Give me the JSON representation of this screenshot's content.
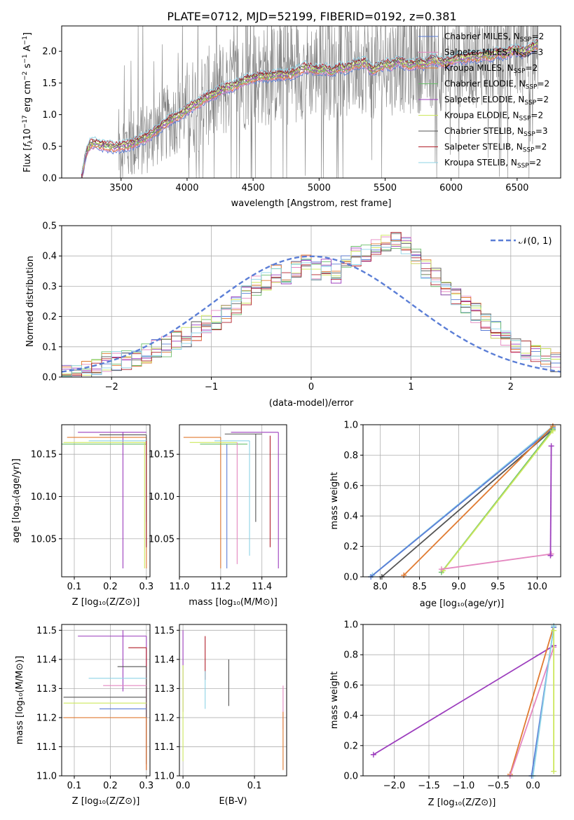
{
  "colors": {
    "c1": "#5b7ed6",
    "c2": "#e487c0",
    "c3": "#e07a30",
    "c4": "#6bbf6b",
    "c5": "#9c3dbd",
    "c6": "#cde85d",
    "c7": "#545454",
    "c8": "#b11f2a",
    "c9": "#8ed3e6"
  },
  "chart_data": [
    {
      "id": "spectrum",
      "type": "line",
      "title": "PLATE=0712, MJD=52199, FIBERID=0192, z=0.381",
      "xlabel": "wavelength [Angstrom, rest frame]",
      "ylabel": "Flux [f_λ 10^{-17} erg cm^{-2} s^{-1} A^{-1}]",
      "ylabel_parts": {
        "a": "Flux [",
        "b": "f",
        "c": "λ",
        "d": "10",
        "e": "−17",
        "f": " erg cm",
        "g": "−2",
        "h": " s",
        "i": "−1",
        "j": " A",
        "k": "−1",
        "l": "]"
      },
      "xlim": [
        3050,
        6830
      ],
      "ylim": [
        0,
        2.4
      ],
      "xticks": [
        3500,
        4000,
        4500,
        5000,
        5500,
        6000,
        6500
      ],
      "yticks": [
        "0.0",
        "0.5",
        "1.0",
        "1.5",
        "2.0"
      ],
      "data_color": "#808080",
      "model_x": [
        3200,
        3230,
        3260,
        3300,
        3350,
        3400,
        3450,
        3500,
        3550,
        3600,
        3650,
        3700,
        3750,
        3800,
        3850,
        3900,
        3950,
        4000,
        4050,
        4100,
        4150,
        4200,
        4250,
        4300,
        4350,
        4400,
        4450,
        4500,
        4550,
        4600,
        4650,
        4700,
        4750,
        4800,
        4850,
        4900,
        4950,
        5000,
        5050,
        5100,
        5150,
        5200,
        5250,
        5300,
        5350,
        5400,
        5450,
        5500,
        5550,
        5600,
        5650,
        5700,
        5750,
        5800,
        5850,
        5900,
        5950,
        6000,
        6050,
        6100,
        6150,
        6200,
        6250,
        6300,
        6350,
        6400,
        6450,
        6500,
        6550,
        6600,
        6650
      ],
      "model_y": [
        0.0,
        0.35,
        0.52,
        0.55,
        0.52,
        0.5,
        0.48,
        0.5,
        0.52,
        0.55,
        0.6,
        0.65,
        0.72,
        0.8,
        0.88,
        0.95,
        1.0,
        1.08,
        1.15,
        1.2,
        1.28,
        1.32,
        1.38,
        1.43,
        1.45,
        1.5,
        1.55,
        1.58,
        1.6,
        1.6,
        1.62,
        1.63,
        1.62,
        1.65,
        1.7,
        1.75,
        1.72,
        1.7,
        1.72,
        1.68,
        1.75,
        1.72,
        1.78,
        1.8,
        1.82,
        1.7,
        1.75,
        1.8,
        1.78,
        1.85,
        1.8,
        1.78,
        1.82,
        1.8,
        1.88,
        1.85,
        1.82,
        1.85,
        1.9,
        1.88,
        1.92,
        1.9,
        1.95,
        1.92,
        1.98,
        1.95,
        2.0,
        2.02,
        1.98,
        2.05,
        2.1
      ],
      "legend": [
        {
          "label": "Chabrier MILES, N",
          "sub": "SSP",
          "suffix": "=2",
          "color": "#5b7ed6"
        },
        {
          "label": "Salpeter MILES, N",
          "sub": "SSP",
          "suffix": "=3",
          "color": "#e487c0"
        },
        {
          "label": "Kroupa MILES, N",
          "sub": "SSP",
          "suffix": "=2",
          "color": "#e07a30"
        },
        {
          "label": "Chabrier ELODIE, N",
          "sub": "SSP",
          "suffix": "=2",
          "color": "#6bbf6b"
        },
        {
          "label": "Salpeter ELODIE, N",
          "sub": "SSP",
          "suffix": "=2",
          "color": "#9c3dbd"
        },
        {
          "label": "Kroupa ELODIE, N",
          "sub": "SSP",
          "suffix": "=2",
          "color": "#cde85d"
        },
        {
          "label": "Chabrier STELIB, N",
          "sub": "SSP",
          "suffix": "=3",
          "color": "#545454"
        },
        {
          "label": "Salpeter STELIB, N",
          "sub": "SSP",
          "suffix": "=2",
          "color": "#b11f2a"
        },
        {
          "label": "Kroupa STELIB, N",
          "sub": "SSP",
          "suffix": "=2",
          "color": "#8ed3e6"
        }
      ]
    },
    {
      "id": "residuals",
      "type": "line",
      "xlabel": "(data-model)/error",
      "ylabel": "Normed distribution",
      "xlim": [
        -2.5,
        2.5
      ],
      "ylim": [
        0,
        0.5
      ],
      "xticks": [
        "−2",
        "−1",
        "0",
        "1",
        "2"
      ],
      "yticks": [
        "0.0",
        "0.1",
        "0.2",
        "0.3",
        "0.4",
        "0.5"
      ],
      "grid": true,
      "legend": "top-right",
      "gaussian_label": "𝒩(0, 1)",
      "hist_bins": 50,
      "hist_values": [
        0.02,
        0.02,
        0.03,
        0.04,
        0.05,
        0.05,
        0.06,
        0.07,
        0.08,
        0.09,
        0.1,
        0.12,
        0.13,
        0.15,
        0.17,
        0.19,
        0.21,
        0.24,
        0.27,
        0.3,
        0.32,
        0.34,
        0.33,
        0.36,
        0.38,
        0.35,
        0.37,
        0.34,
        0.38,
        0.4,
        0.41,
        0.43,
        0.44,
        0.45,
        0.43,
        0.4,
        0.36,
        0.33,
        0.3,
        0.27,
        0.24,
        0.21,
        0.18,
        0.15,
        0.13,
        0.11,
        0.09,
        0.07,
        0.06,
        0.05
      ]
    },
    {
      "id": "Z_age",
      "type": "line",
      "xlabel": "Z [log₁₀(Z/Z⊙)]",
      "ylabel": "age  [log₁₀(age/yr)]",
      "xlim": [
        0.065,
        0.31
      ],
      "ylim": [
        10.005,
        10.185
      ],
      "xticks": [
        "0.1",
        "0.2",
        "0.3"
      ],
      "yticks": [
        "10.05",
        "10.10",
        "10.15"
      ],
      "grid": true
    },
    {
      "id": "mass_age",
      "type": "line",
      "xlabel": "mass [log₁₀(M/M⊙)]",
      "xlim": [
        11.0,
        11.52
      ],
      "ylim": [
        10.005,
        10.185
      ],
      "xticks": [
        "11.0",
        "11.2",
        "11.4"
      ],
      "yticks": [
        "10.05",
        "10.10",
        "10.15"
      ],
      "grid": true
    },
    {
      "id": "age_weight",
      "type": "line",
      "xlabel": "age  [log₁₀(age/yr)]",
      "ylabel": "mass weight",
      "xlim": [
        7.78,
        10.3
      ],
      "ylim": [
        0,
        1.0
      ],
      "xticks": [
        "8.0",
        "8.5",
        "9.0",
        "9.5",
        "10.0"
      ],
      "yticks": [
        "0.0",
        "0.2",
        "0.4",
        "0.6",
        "0.8",
        "1.0"
      ],
      "grid": true,
      "series": [
        {
          "color": "#8ed3e6",
          "x": [
            7.9,
            10.2
          ],
          "y": [
            0.01,
            0.99
          ]
        },
        {
          "color": "#5b7ed6",
          "x": [
            7.88,
            10.2
          ],
          "y": [
            0.0,
            0.98
          ]
        },
        {
          "color": "#545454",
          "x": [
            8.02,
            10.2
          ],
          "y": [
            0.0,
            0.97
          ]
        },
        {
          "color": "#e07a30",
          "x": [
            8.3,
            10.2
          ],
          "y": [
            0.01,
            0.99
          ]
        },
        {
          "color": "#6bbf6b",
          "x": [
            8.78,
            10.2
          ],
          "y": [
            0.03,
            0.97
          ]
        },
        {
          "color": "#cde85d",
          "x": [
            8.8,
            10.2
          ],
          "y": [
            0.04,
            0.96
          ]
        },
        {
          "color": "#e487c0",
          "x": [
            8.78,
            10.18
          ],
          "y": [
            0.05,
            0.15
          ]
        },
        {
          "color": "#9c3dbd",
          "x": [
            10.17,
            10.18
          ],
          "y": [
            0.14,
            0.86
          ]
        }
      ]
    },
    {
      "id": "Z_mass",
      "type": "line",
      "xlabel": "Z [log₁₀(Z/Z⊙)]",
      "ylabel": "mass [log₁₀(M/M⊙)]",
      "xlim": [
        0.065,
        0.31
      ],
      "ylim": [
        11.0,
        11.52
      ],
      "xticks": [
        "0.1",
        "0.2",
        "0.3"
      ],
      "yticks": [
        "11.0",
        "11.1",
        "11.2",
        "11.3",
        "11.4",
        "11.5"
      ],
      "grid": true
    },
    {
      "id": "ebv_mass",
      "type": "line",
      "xlabel": "E(B-V)",
      "xlim": [
        -0.005,
        0.145
      ],
      "ylim": [
        11.0,
        11.52
      ],
      "xticks": [
        "0.0",
        "0.1"
      ],
      "yticks": [
        "11.0",
        "11.1",
        "11.2",
        "11.3",
        "11.4",
        "11.5"
      ],
      "grid": true
    },
    {
      "id": "Z_weight",
      "type": "line",
      "xlabel": "Z [log₁₀(Z/Z⊙)]",
      "ylabel": "mass weight",
      "xlim": [
        -2.45,
        0.4
      ],
      "ylim": [
        0,
        1.0
      ],
      "xticks": [
        "−2.0",
        "−1.5",
        "−1.0",
        "−0.5",
        "0.0"
      ],
      "yticks": [
        "0.0",
        "0.2",
        "0.4",
        "0.6",
        "0.8",
        "1.0"
      ],
      "grid": true,
      "series": [
        {
          "color": "#9c3dbd",
          "x": [
            -2.3,
            0.3
          ],
          "y": [
            0.14,
            0.86
          ]
        },
        {
          "color": "#e07a30",
          "x": [
            -0.33,
            0.3
          ],
          "y": [
            0.01,
            0.99
          ]
        },
        {
          "color": "#e487c0",
          "x": [
            -0.33,
            0.3
          ],
          "y": [
            0.0,
            0.85
          ]
        },
        {
          "color": "#5b7ed6",
          "x": [
            -0.02,
            0.3
          ],
          "y": [
            0.0,
            0.98
          ]
        },
        {
          "color": "#8ed3e6",
          "x": [
            0.0,
            0.3
          ],
          "y": [
            0.0,
            0.99
          ]
        },
        {
          "color": "#cde85d",
          "x": [
            0.3,
            0.3
          ],
          "y": [
            0.03,
            0.96
          ]
        }
      ]
    }
  ]
}
